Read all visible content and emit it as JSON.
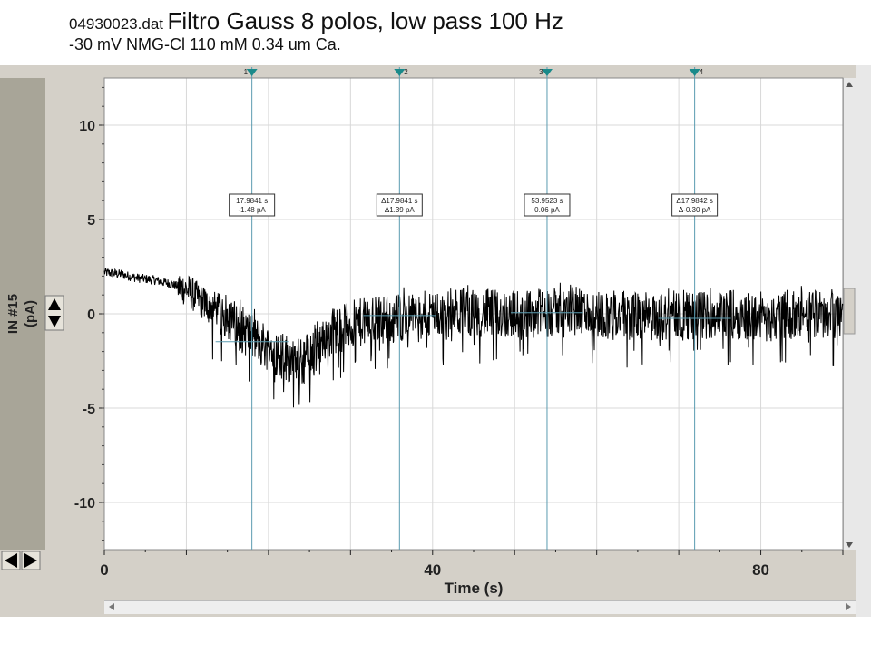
{
  "title": {
    "file": "04930023.dat",
    "main": "Filtro Gauss 8 polos, low pass 100 Hz",
    "subtitle": "-30 mV NMG-Cl 110 mM 0.34 um Ca."
  },
  "yaxis": {
    "label_line1": "IN #15",
    "label_line2": "(pA)"
  },
  "colors": {
    "trace": "#000000",
    "cursor": "#5a9bb0",
    "grid": "#d8d8d8",
    "marker": "#1a8a8a"
  },
  "icons": {
    "scale_up": "triangle-up-icon",
    "scale_down": "triangle-down-icon",
    "scroll_left": "triangle-left-icon",
    "scroll_right": "triangle-right-icon"
  },
  "chart_data": {
    "type": "line",
    "xlabel": "Time (s)",
    "ylabel": "IN #15 (pA)",
    "xlim": [
      0,
      90
    ],
    "ylim": [
      -12.5,
      12.5
    ],
    "x_ticks": [
      0,
      40,
      80
    ],
    "y_ticks": [
      10,
      5,
      0,
      -5,
      -10
    ],
    "grid": true,
    "series": [
      {
        "x": [
          0,
          2,
          4,
          6,
          8,
          10,
          12,
          14,
          16,
          18,
          20,
          22,
          24,
          26,
          28,
          30,
          32,
          34,
          36,
          38,
          40,
          44,
          48,
          52,
          56,
          60,
          64,
          68,
          72,
          76,
          80,
          84,
          88,
          90
        ],
        "y": [
          2.2,
          2.1,
          1.9,
          1.8,
          1.6,
          1.3,
          0.6,
          0.2,
          -0.6,
          -1.2,
          -1.8,
          -2.3,
          -2.6,
          -1.6,
          -0.9,
          -0.6,
          -0.4,
          -0.3,
          -0.2,
          -0.1,
          0.0,
          0.1,
          0.0,
          0.0,
          0.1,
          0.0,
          -0.1,
          -0.2,
          -0.1,
          0.0,
          -0.2,
          -0.1,
          0.0,
          0.0
        ]
      }
    ],
    "cursors": [
      {
        "number": "1",
        "x": 17.9841,
        "line1": "17.9841 s",
        "line2": "-1.48 pA",
        "level": -1.48
      },
      {
        "number": "2",
        "x": 35.9682,
        "line1": "Δ17.9841 s",
        "line2": "Δ1.39 pA",
        "level": -0.09
      },
      {
        "number": "3",
        "x": 53.9523,
        "line1": "53.9523 s",
        "line2": "0.06 pA",
        "level": 0.06
      },
      {
        "number": "4",
        "x": 71.9365,
        "line1": "Δ17.9842 s",
        "line2": "Δ-0.30 pA",
        "level": -0.24
      }
    ]
  }
}
